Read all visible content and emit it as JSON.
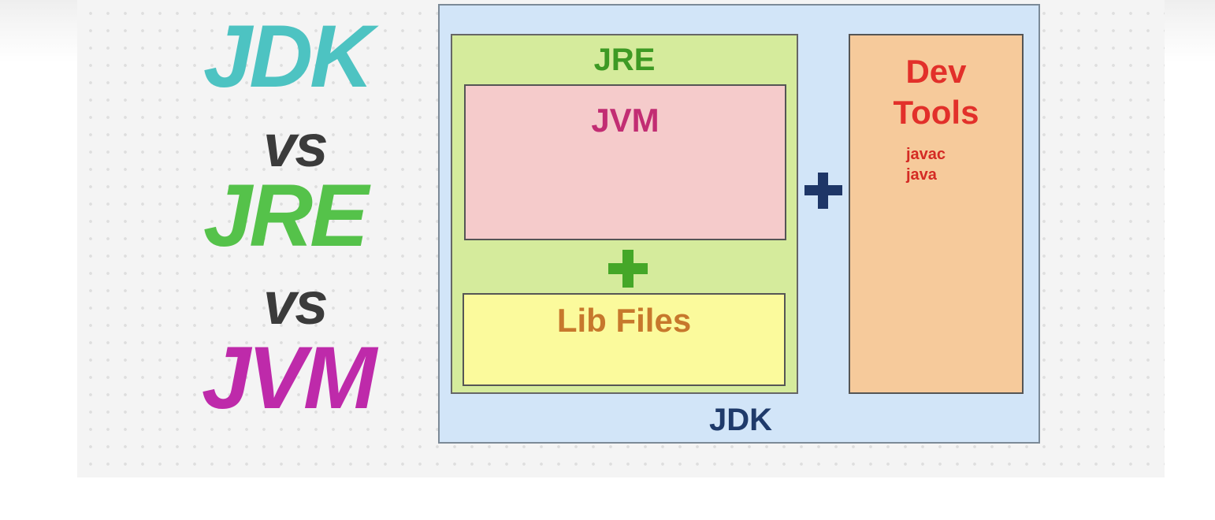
{
  "title_stack": {
    "jdk": "JDK",
    "vs_1": "vs",
    "jre": "JRE",
    "vs_2": "vs",
    "jvm": "JVM"
  },
  "diagram": {
    "jdk_label": "JDK",
    "jre_label": "JRE",
    "jvm_label": "JVM",
    "lib_files_label": "Lib Files",
    "dev_tools_line1": "Dev",
    "dev_tools_line2": "Tools",
    "tools": [
      "javac",
      "java"
    ]
  },
  "colors": {
    "jdk_title": "#4dc3c2",
    "vs": "#3b3b3b",
    "jre_title": "#55c24a",
    "jvm_title": "#be2aaa",
    "jdk_box": "#d2e5f8",
    "jre_box": "#d5eb9c",
    "jvm_box": "#f5cbcb",
    "lib_box": "#fbfa9c",
    "dev_box": "#f6ca9b",
    "plus_green": "#45a728",
    "plus_navy": "#1e3667"
  },
  "icons": {
    "inner_plus": "plus-icon",
    "outer_plus": "plus-icon"
  }
}
